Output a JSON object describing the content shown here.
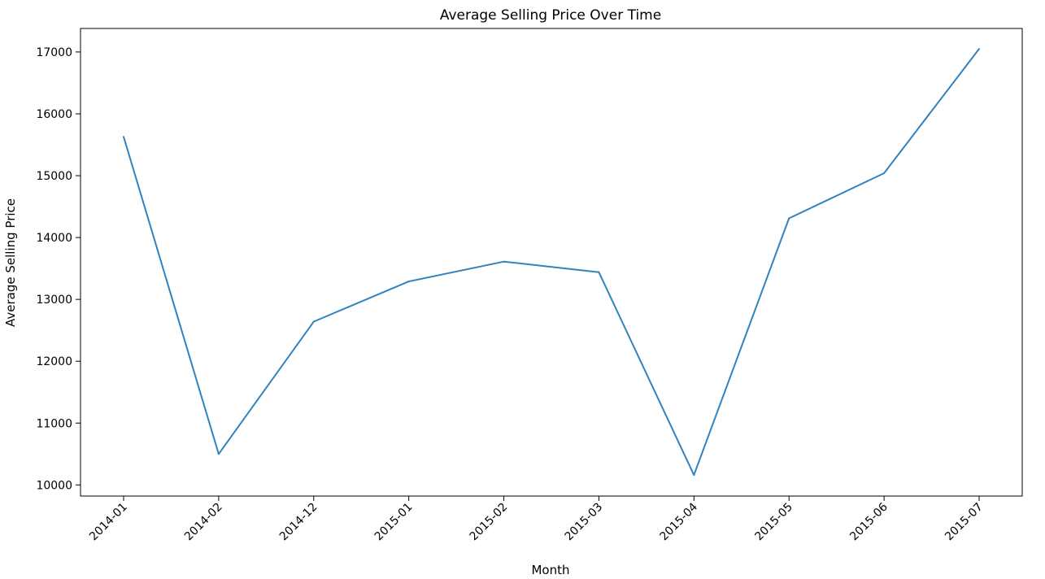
{
  "chart_data": {
    "type": "line",
    "title": "Average Selling Price Over Time",
    "xlabel": "Month",
    "ylabel": "Average Selling Price",
    "categories": [
      "2014-01",
      "2014-02",
      "2014-12",
      "2015-01",
      "2015-02",
      "2015-03",
      "2015-04",
      "2015-05",
      "2015-06",
      "2015-07"
    ],
    "series": [
      {
        "values": [
          15630,
          10500,
          12640,
          13290,
          13610,
          13440,
          10160,
          14310,
          15040,
          17050
        ],
        "color": "#3182bd"
      }
    ],
    "y_ticks": [
      10000,
      11000,
      12000,
      13000,
      14000,
      15000,
      16000,
      17000
    ],
    "ylim": [
      9820,
      17380
    ],
    "grid": false,
    "legend": "none"
  }
}
